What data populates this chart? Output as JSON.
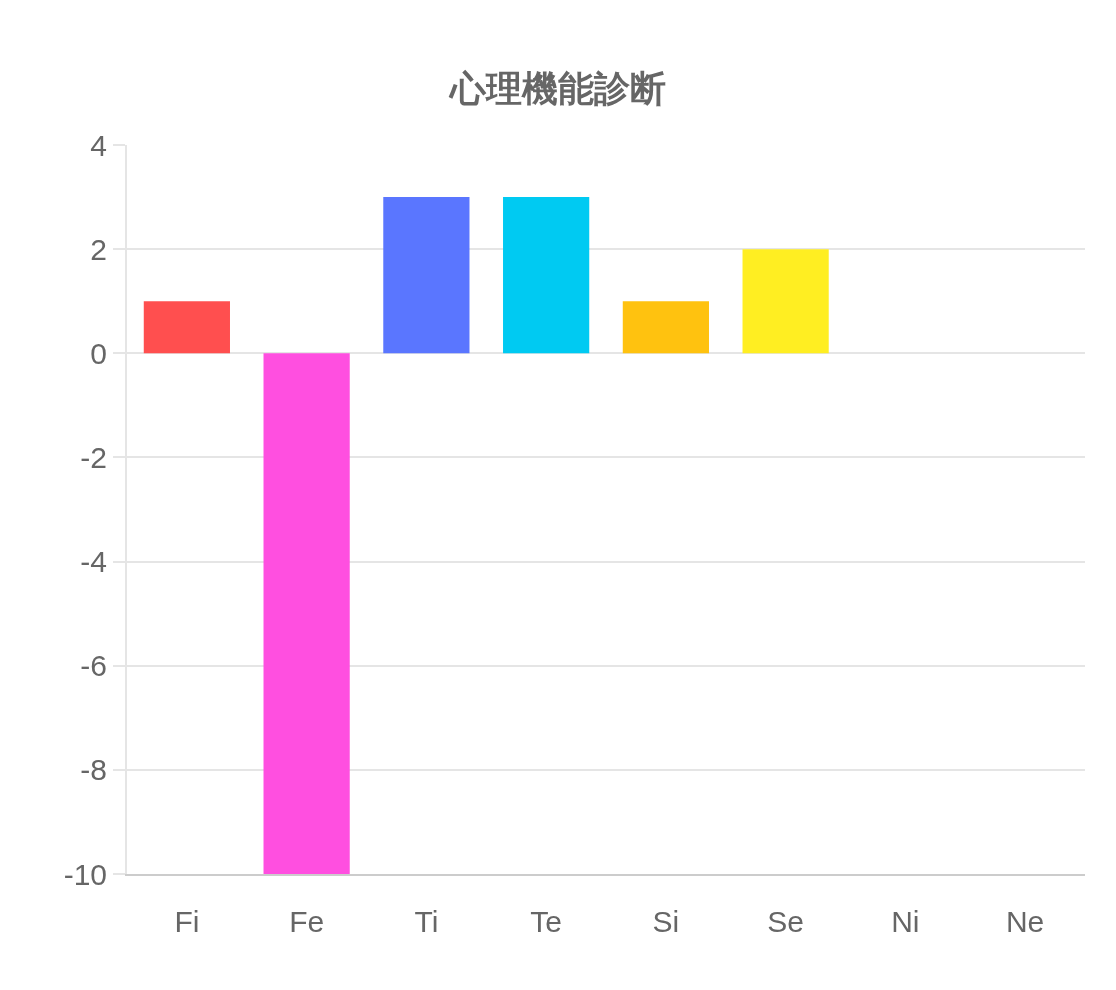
{
  "chart_data": {
    "type": "bar",
    "title": "心理機能診断",
    "categories": [
      "Fi",
      "Fe",
      "Ti",
      "Te",
      "Si",
      "Se",
      "Ni",
      "Ne"
    ],
    "values": [
      1,
      -10,
      3,
      3,
      1,
      2,
      0,
      0
    ],
    "colors": [
      "#ff4f4f",
      "#ff4fe0",
      "#5a76ff",
      "#00caf2",
      "#ffc20f",
      "#ffee22",
      null,
      null
    ],
    "ylim": [
      -10,
      4
    ],
    "yticks": [
      -10,
      -8,
      -6,
      -4,
      -2,
      0,
      2,
      4
    ],
    "grid": "y",
    "legend": false
  }
}
